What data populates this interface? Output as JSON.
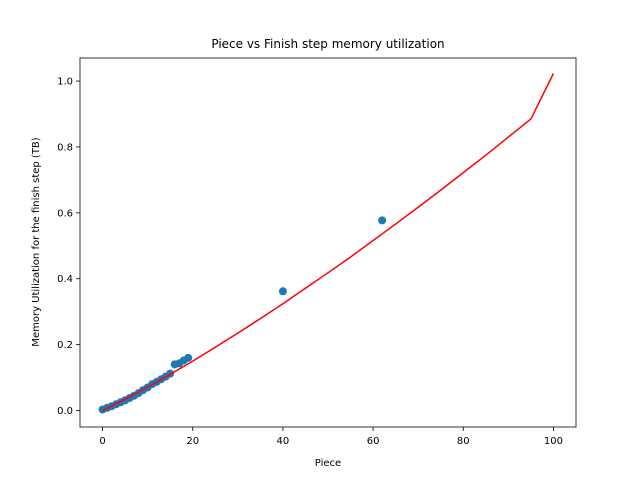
{
  "chart_data": {
    "type": "scatter",
    "title": "Piece vs Finish step memory utilization",
    "xlabel": "Piece",
    "ylabel": "Memory Utilization for the finish step (TB)",
    "xlim": [
      -5,
      105
    ],
    "ylim": [
      -0.05,
      1.07
    ],
    "xticks": [
      "0",
      "20",
      "40",
      "60",
      "80",
      "100"
    ],
    "yticks": [
      "0.0",
      "0.2",
      "0.4",
      "0.6",
      "0.8",
      "1.0"
    ],
    "grid": false,
    "legend": "none",
    "series": [
      {
        "kind": "points",
        "color": "#1f77b4",
        "x": [
          0,
          1,
          2,
          3,
          4,
          5,
          6,
          7,
          8,
          9,
          10,
          11,
          12,
          13,
          14,
          15,
          16,
          17,
          18,
          19,
          40,
          62
        ],
        "y": [
          0.003,
          0.008,
          0.013,
          0.019,
          0.025,
          0.031,
          0.038,
          0.045,
          0.053,
          0.062,
          0.07,
          0.08,
          0.087,
          0.095,
          0.103,
          0.112,
          0.14,
          0.143,
          0.152,
          0.16,
          0.362,
          0.577
        ]
      },
      {
        "kind": "line",
        "color": "#ff0000",
        "x": [
          0,
          5,
          10,
          15,
          20,
          25,
          30,
          35,
          40,
          45,
          50,
          55,
          60,
          65,
          70,
          75,
          80,
          85,
          90,
          95,
          100
        ],
        "y": [
          0.0,
          0.034,
          0.071,
          0.11,
          0.15,
          0.192,
          0.235,
          0.279,
          0.324,
          0.371,
          0.418,
          0.466,
          0.516,
          0.566,
          0.617,
          0.669,
          0.722,
          0.775,
          0.83,
          0.885,
          1.023
        ]
      }
    ]
  }
}
